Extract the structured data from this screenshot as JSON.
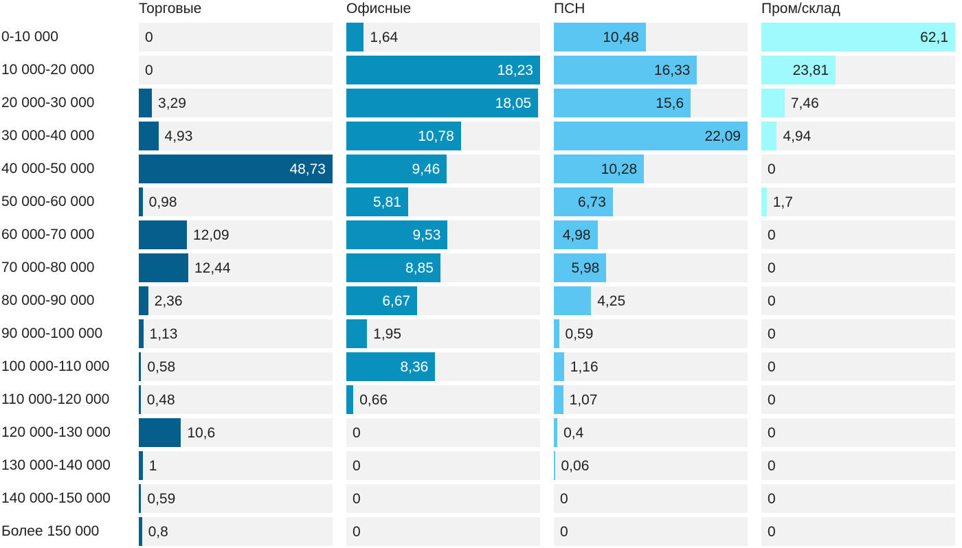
{
  "chart_data": {
    "type": "bar",
    "orientation": "horizontal",
    "title": "",
    "grid": false,
    "legend_position": "column-headers",
    "track_color": "#F2F2F2",
    "text_color": "#212121",
    "row_gap_color": "#FFFFFF",
    "scale_note": "each column scaled independently to its own maximum value",
    "categories": [
      "0-10 000",
      "10 000-20 000",
      "20 000-30 000",
      "30 000-40 000",
      "40 000-50 000",
      "50 000-60 000",
      "60 000-70 000",
      "70 000-80 000",
      "80 000-90 000",
      "90 000-100 000",
      "100 000-110 000",
      "110 000-120 000",
      "120 000-130 000",
      "130 000-140 000",
      "140 000-150 000",
      "Более 150 000"
    ],
    "series": [
      {
        "name": "Торговые",
        "color": "#055E8C",
        "label_color_inside": "#FFFFFF",
        "values": [
          0,
          0,
          3.29,
          4.93,
          48.73,
          0.98,
          12.09,
          12.44,
          2.36,
          1.13,
          0.58,
          0.48,
          10.6,
          1,
          0.59,
          0.8
        ],
        "labels": [
          "0",
          "0",
          "3,29",
          "4,93",
          "48,73",
          "0,98",
          "12,09",
          "12,44",
          "2,36",
          "1,13",
          "0,58",
          "0,48",
          "10,6",
          "1",
          "0,59",
          "0,8"
        ]
      },
      {
        "name": "Офисные",
        "color": "#0990BC",
        "label_color_inside": "#FFFFFF",
        "values": [
          1.64,
          18.23,
          18.05,
          10.78,
          9.46,
          5.81,
          9.53,
          8.85,
          6.67,
          1.95,
          8.36,
          0.66,
          0,
          0,
          0,
          0
        ],
        "labels": [
          "1,64",
          "18,23",
          "18,05",
          "10,78",
          "9,46",
          "5,81",
          "9,53",
          "8,85",
          "6,67",
          "1,95",
          "8,36",
          "0,66",
          "0",
          "0",
          "0",
          "0"
        ]
      },
      {
        "name": "ПСН",
        "color": "#5CC6F2",
        "label_color_inside": "#212121",
        "values": [
          10.48,
          16.33,
          15.6,
          22.09,
          10.28,
          6.73,
          4.98,
          5.98,
          4.25,
          0.59,
          1.16,
          1.07,
          0.4,
          0.06,
          0,
          0
        ],
        "labels": [
          "10,48",
          "16,33",
          "15,6",
          "22,09",
          "10,28",
          "6,73",
          "4,98",
          "5,98",
          "4,25",
          "0,59",
          "1,16",
          "1,07",
          "0,4",
          "0,06",
          "0",
          "0"
        ]
      },
      {
        "name": "Пром/склад",
        "color": "#9EFAFC",
        "label_color_inside": "#212121",
        "values": [
          62.1,
          23.81,
          7.46,
          4.94,
          0,
          1.7,
          0,
          0,
          0,
          0,
          0,
          0,
          0,
          0,
          0,
          0
        ],
        "labels": [
          "62,1",
          "23,81",
          "7,46",
          "4,94",
          "0",
          "1,7",
          "0",
          "0",
          "0",
          "0",
          "0",
          "0",
          "0",
          "0",
          "0",
          "0"
        ]
      }
    ]
  }
}
